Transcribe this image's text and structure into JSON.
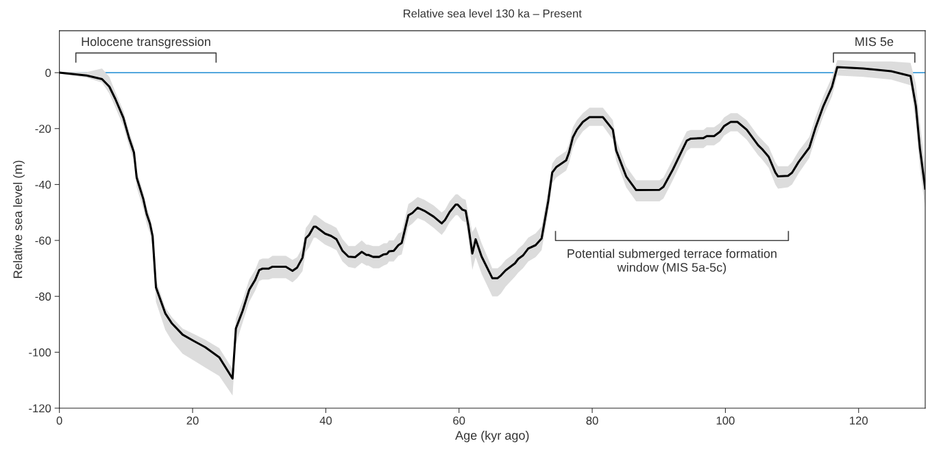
{
  "chart_data": {
    "type": "line",
    "title": "Relative sea level 130 ka – Present",
    "xlabel": "Age (kyr ago)",
    "ylabel": "Relative sea level (m)",
    "xlim": [
      0,
      130
    ],
    "ylim": [
      -120,
      15
    ],
    "xticks": [
      0,
      20,
      40,
      60,
      80,
      100,
      120
    ],
    "yticks": [
      -120,
      -100,
      -80,
      -60,
      -40,
      -20,
      0
    ],
    "grid": false,
    "legend": false,
    "marker": "none",
    "line_style": "solid",
    "ref_lines": [
      {
        "axis": "y",
        "value": 0,
        "color": "#3a9ad9",
        "line_style": "solid"
      }
    ],
    "annotations": [
      "Holocene transgression",
      "MIS 5e",
      "Potential submerged terrace formation window (MIS 5a-5c)"
    ],
    "series": [
      {
        "color": "#000000",
        "x": [
          0,
          4.1,
          6.4,
          7.5,
          8.4,
          9.6,
          10.5,
          11.2,
          11.6,
          12.6,
          13.1,
          13.6,
          14.0,
          14.5,
          15.9,
          16.9,
          18.5,
          20.2,
          21.9,
          24.0,
          26.0,
          26.5,
          27.5,
          28.5,
          29.4,
          30.0,
          30.5,
          31.4,
          32.0,
          34.0,
          35.0,
          35.7,
          36.5,
          37.0,
          37.5,
          38.2,
          38.5,
          39.9,
          40.8,
          41.6,
          42.5,
          43.4,
          44.4,
          45.4,
          46.1,
          46.4,
          47.1,
          48.0,
          48.7,
          49.2,
          49.5,
          50.2,
          50.9,
          51.4,
          52.4,
          53.0,
          53.8,
          54.8,
          56.2,
          57.4,
          57.9,
          58.6,
          59.5,
          59.8,
          60.5,
          61.0,
          61.4,
          62.0,
          62.5,
          63.4,
          65.0,
          65.8,
          66.3,
          67.0,
          68.4,
          68.9,
          69.6,
          70.4,
          71.5,
          72.4,
          73.4,
          74.0,
          74.6,
          76.1,
          76.5,
          77.1,
          77.7,
          78.6,
          79.6,
          81.6,
          83.1,
          83.6,
          85.1,
          86.6,
          90.1,
          90.7,
          92.1,
          94.2,
          94.8,
          96.7,
          97.2,
          98.3,
          99.2,
          99.8,
          100.8,
          101.8,
          103.2,
          104.9,
          105.5,
          106.5,
          107.5,
          107.9,
          109.4,
          110.0,
          111.0,
          112.6,
          113.5,
          114.7,
          116.0,
          116.8,
          120.7,
          124.9,
          127.8,
          128.6,
          129.2,
          130.0
        ],
        "values": [
          0,
          -1,
          -2.3,
          -5,
          -9.4,
          -16.1,
          -23.7,
          -28.6,
          -37.5,
          -45.2,
          -50.5,
          -54,
          -58.5,
          -76.8,
          -86.1,
          -89.7,
          -93.7,
          -96,
          -98.2,
          -101.8,
          -109.4,
          -91.5,
          -85.3,
          -77.7,
          -74.1,
          -70.6,
          -70.1,
          -70.1,
          -69.4,
          -69.4,
          -70.9,
          -69.7,
          -66.2,
          -59.2,
          -58,
          -55.1,
          -55.1,
          -57.6,
          -58.4,
          -59.6,
          -63.7,
          -65.8,
          -66,
          -64.1,
          -65.2,
          -65.2,
          -65.9,
          -65.9,
          -65,
          -64.8,
          -63.9,
          -63.7,
          -61.7,
          -60.9,
          -51,
          -50.2,
          -48.3,
          -49.4,
          -51.5,
          -53.9,
          -52.7,
          -49.8,
          -47.2,
          -47.2,
          -49,
          -49.4,
          -54.7,
          -64.7,
          -59.6,
          -65.8,
          -73.5,
          -73.5,
          -72.5,
          -70.7,
          -68.2,
          -66.6,
          -65.4,
          -62.9,
          -61.7,
          -59.3,
          -45.9,
          -35.7,
          -33.8,
          -31.3,
          -28.7,
          -23.1,
          -20.4,
          -17.6,
          -15.9,
          -15.9,
          -20.4,
          -27.8,
          -37.1,
          -42,
          -41.9,
          -40.8,
          -34.7,
          -24.3,
          -23.6,
          -23.4,
          -22.7,
          -22.7,
          -21.1,
          -19.1,
          -17.6,
          -17.6,
          -20.4,
          -25.9,
          -27.3,
          -30.1,
          -35.7,
          -37.1,
          -36.9,
          -35.8,
          -31.9,
          -26.8,
          -19.9,
          -12,
          -5.1,
          2,
          1.5,
          0.5,
          -1.2,
          -12,
          -27,
          -41.5
        ],
        "lower": [
          -0.3,
          -1.8,
          -3.5,
          -7.5,
          -12.4,
          -19.1,
          -26.7,
          -31.6,
          -41,
          -48.7,
          -54,
          -57.5,
          -63,
          -82,
          -92,
          -96,
          -100.5,
          -103,
          -105.5,
          -108.5,
          -115.5,
          -97,
          -89.5,
          -82,
          -78,
          -74.5,
          -74,
          -74,
          -73.5,
          -73.5,
          -75,
          -73.5,
          -71,
          -64,
          -62.5,
          -59,
          -59,
          -61.5,
          -62.5,
          -63.5,
          -67.5,
          -69.5,
          -70,
          -68,
          -69,
          -69,
          -70,
          -70,
          -69,
          -68.5,
          -67.5,
          -67.5,
          -65.5,
          -65,
          -55,
          -54,
          -52,
          -53,
          -55.5,
          -58,
          -56.5,
          -53.5,
          -51,
          -51,
          -53,
          -53.5,
          -59,
          -70.5,
          -66,
          -72,
          -80,
          -80,
          -79,
          -76.5,
          -73,
          -71.5,
          -70,
          -67.5,
          -66,
          -63.5,
          -50,
          -39.5,
          -37.5,
          -35,
          -32.5,
          -27,
          -24,
          -21,
          -19,
          -19,
          -24,
          -31.5,
          -41,
          -46,
          -46,
          -45,
          -38.5,
          -28,
          -27,
          -27,
          -26,
          -26,
          -24.5,
          -22.5,
          -21,
          -21,
          -24,
          -29.5,
          -31,
          -34,
          -40,
          -41.5,
          -41,
          -40,
          -36,
          -30.5,
          -23.5,
          -15.5,
          -8.5,
          -1,
          -1.5,
          -2.5,
          -4.5,
          -18,
          -34,
          -48.5
        ],
        "upper": [
          0.3,
          0.2,
          1.5,
          -1.5,
          -6.9,
          -13.6,
          -21.2,
          -26.1,
          -35,
          -42.7,
          -48,
          -51.5,
          -56,
          -74,
          -84,
          -87.5,
          -91.5,
          -93.5,
          -95.5,
          -98.5,
          -106,
          -88,
          -81.5,
          -74,
          -70.5,
          -67,
          -66.5,
          -66.5,
          -65.5,
          -65.5,
          -67,
          -66,
          -62.5,
          -55.5,
          -54,
          -51,
          -51,
          -53.5,
          -54.5,
          -55.5,
          -59.5,
          -62,
          -62,
          -60,
          -61.5,
          -61.5,
          -62,
          -62,
          -61,
          -61,
          -60,
          -60,
          -57.5,
          -57,
          -47,
          -46,
          -44.5,
          -45.5,
          -47.5,
          -50,
          -49,
          -46,
          -43.5,
          -43.5,
          -45,
          -45.5,
          -50.5,
          -57,
          -55,
          -61,
          -70,
          -70,
          -69,
          -67,
          -64.5,
          -63,
          -61.5,
          -59,
          -57.5,
          -55,
          -42,
          -32.5,
          -30.5,
          -28,
          -25.5,
          -19.5,
          -17,
          -14.5,
          -12.5,
          -12.5,
          -17,
          -24,
          -33.5,
          -38.5,
          -38.5,
          -37.5,
          -31,
          -21,
          -20.5,
          -20.5,
          -19.5,
          -19.5,
          -18,
          -16,
          -14.5,
          -14.5,
          -17,
          -22.5,
          -24,
          -26.5,
          -32,
          -33.5,
          -33.5,
          -32,
          -28,
          -23,
          -16,
          -8.5,
          -1.5,
          4.5,
          4,
          4,
          3.5,
          -4,
          -18,
          -34
        ]
      }
    ]
  }
}
